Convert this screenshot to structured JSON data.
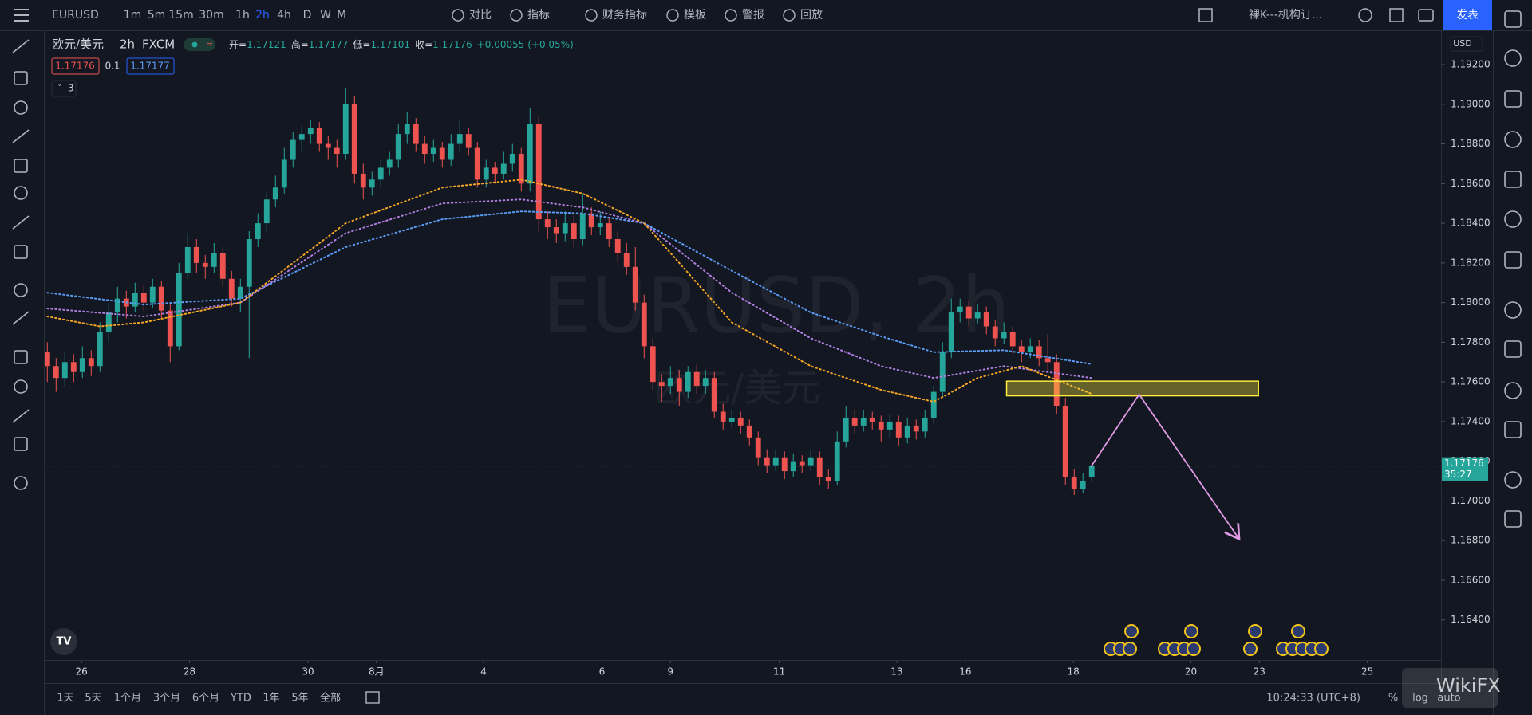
{
  "ui": {
    "symbol": "EURUSD",
    "intervals": [
      "1m",
      "5m",
      "15m",
      "30m",
      "1h",
      "2h",
      "4h",
      "D",
      "W",
      "M"
    ],
    "active_interval_index": 5,
    "tools": [
      "对比",
      "指标",
      "财务指标",
      "模板",
      "警报",
      "回放"
    ],
    "layout_name": "裸K---机构订...",
    "publish": "发表",
    "currency": "USD",
    "ranges": [
      "1天",
      "5天",
      "1个月",
      "3个月",
      "6个月",
      "YTD",
      "1年",
      "5年",
      "全部"
    ],
    "clock": "10:24:33 (UTC+8)",
    "scale_options": [
      "%",
      "log",
      "auto"
    ],
    "indicator_count": 3,
    "brand": "WikiFX"
  },
  "chart_data": {
    "type": "candlestick",
    "title": "欧元/美元",
    "interval": "2h",
    "source": "FXCM",
    "watermark": "EURUSD, 2h",
    "legend": [
      {
        "label": "开=",
        "value": 1.17121
      },
      {
        "label": "高=",
        "value": 1.17177
      },
      {
        "label": "低=",
        "value": 1.17101
      },
      {
        "label": "收=",
        "value": 1.17176
      }
    ],
    "change": "+0.00055 (+0.05%)",
    "bid": 1.17176,
    "spread": 0.1,
    "ask": 1.17177,
    "last_price": 1.17176,
    "countdown": "35:27",
    "up_color": "#26a69a",
    "down_color": "#ef5350",
    "ylim": [
      1.16198,
      1.19373
    ],
    "yticks": [
      {
        "value": 1.164,
        "label": "1.16400"
      },
      {
        "value": 1.166,
        "label": "1.16600"
      },
      {
        "value": 1.168,
        "label": "1.16800"
      },
      {
        "value": 1.17,
        "label": "1.17000"
      },
      {
        "value": 1.172,
        "label": "1.17200"
      },
      {
        "value": 1.174,
        "label": "1.17400"
      },
      {
        "value": 1.176,
        "label": "1.17600"
      },
      {
        "value": 1.178,
        "label": "1.17800"
      },
      {
        "value": 1.18,
        "label": "1.18000"
      },
      {
        "value": 1.182,
        "label": "1.18200"
      },
      {
        "value": 1.184,
        "label": "1.18400"
      },
      {
        "value": 1.186,
        "label": "1.18600"
      },
      {
        "value": 1.188,
        "label": "1.18800"
      },
      {
        "value": 1.19,
        "label": "1.19000"
      },
      {
        "value": 1.192,
        "label": "1.19200"
      }
    ],
    "xlim": [
      -0.3,
      158.8
    ],
    "xticks": [
      {
        "value": 3.9,
        "label": "26"
      },
      {
        "value": 16.2,
        "label": "28"
      },
      {
        "value": 29.7,
        "label": "30"
      },
      {
        "value": 37.5,
        "label": "8月"
      },
      {
        "value": 49.7,
        "label": "4"
      },
      {
        "value": 63.2,
        "label": "6"
      },
      {
        "value": 71,
        "label": "9"
      },
      {
        "value": 83.4,
        "label": "11"
      },
      {
        "value": 96.8,
        "label": "13"
      },
      {
        "value": 104.6,
        "label": "16"
      },
      {
        "value": 116.9,
        "label": "18"
      },
      {
        "value": 130.3,
        "label": "20"
      },
      {
        "value": 138.1,
        "label": "23"
      },
      {
        "value": 150.4,
        "label": "25"
      }
    ],
    "candles": [
      [
        1.1775,
        1.178,
        1.176,
        1.1768
      ],
      [
        1.1768,
        1.1772,
        1.1755,
        1.1762
      ],
      [
        1.1762,
        1.1775,
        1.1758,
        1.177
      ],
      [
        1.177,
        1.1774,
        1.176,
        1.1765
      ],
      [
        1.1765,
        1.1778,
        1.1762,
        1.1772
      ],
      [
        1.1772,
        1.1776,
        1.1763,
        1.1768
      ],
      [
        1.1768,
        1.179,
        1.1765,
        1.1785
      ],
      [
        1.1785,
        1.18,
        1.178,
        1.1795
      ],
      [
        1.1795,
        1.1808,
        1.179,
        1.1802
      ],
      [
        1.1802,
        1.1806,
        1.1792,
        1.1798
      ],
      [
        1.1798,
        1.181,
        1.1795,
        1.1805
      ],
      [
        1.1805,
        1.1809,
        1.1796,
        1.18
      ],
      [
        1.18,
        1.1812,
        1.1797,
        1.1808
      ],
      [
        1.1808,
        1.1811,
        1.1792,
        1.1796
      ],
      [
        1.1796,
        1.1799,
        1.177,
        1.1778
      ],
      [
        1.1778,
        1.182,
        1.1776,
        1.1815
      ],
      [
        1.1815,
        1.1835,
        1.1812,
        1.1828
      ],
      [
        1.1828,
        1.1832,
        1.1815,
        1.182
      ],
      [
        1.182,
        1.1824,
        1.1812,
        1.1818
      ],
      [
        1.1818,
        1.183,
        1.1815,
        1.1825
      ],
      [
        1.1825,
        1.1828,
        1.1808,
        1.1812
      ],
      [
        1.1812,
        1.1816,
        1.1798,
        1.1802
      ],
      [
        1.1802,
        1.1812,
        1.1795,
        1.1808
      ],
      [
        1.1808,
        1.1836,
        1.1772,
        1.1832
      ],
      [
        1.1832,
        1.1845,
        1.1828,
        1.184
      ],
      [
        1.184,
        1.1856,
        1.1836,
        1.1852
      ],
      [
        1.1852,
        1.1864,
        1.1848,
        1.1858
      ],
      [
        1.1858,
        1.1878,
        1.1855,
        1.1872
      ],
      [
        1.1872,
        1.1886,
        1.1868,
        1.1882
      ],
      [
        1.1882,
        1.1889,
        1.1876,
        1.1885
      ],
      [
        1.1885,
        1.1892,
        1.188,
        1.1888
      ],
      [
        1.1888,
        1.1891,
        1.1876,
        1.188
      ],
      [
        1.188,
        1.1884,
        1.1872,
        1.1878
      ],
      [
        1.1878,
        1.1882,
        1.1868,
        1.1875
      ],
      [
        1.1875,
        1.1908,
        1.1872,
        1.19
      ],
      [
        1.19,
        1.1904,
        1.186,
        1.1865
      ],
      [
        1.1865,
        1.187,
        1.1852,
        1.1858
      ],
      [
        1.1858,
        1.1866,
        1.1854,
        1.1862
      ],
      [
        1.1862,
        1.1872,
        1.1858,
        1.1868
      ],
      [
        1.1868,
        1.1876,
        1.1864,
        1.1872
      ],
      [
        1.1872,
        1.189,
        1.1868,
        1.1885
      ],
      [
        1.1885,
        1.1896,
        1.188,
        1.189
      ],
      [
        1.189,
        1.1893,
        1.1876,
        1.188
      ],
      [
        1.188,
        1.1884,
        1.187,
        1.1875
      ],
      [
        1.1875,
        1.1882,
        1.1871,
        1.1878
      ],
      [
        1.1878,
        1.1881,
        1.1868,
        1.1872
      ],
      [
        1.1872,
        1.1885,
        1.1869,
        1.188
      ],
      [
        1.188,
        1.1892,
        1.1876,
        1.1885
      ],
      [
        1.1885,
        1.1888,
        1.1874,
        1.1878
      ],
      [
        1.1878,
        1.1881,
        1.1858,
        1.1862
      ],
      [
        1.1862,
        1.1872,
        1.1858,
        1.1868
      ],
      [
        1.1868,
        1.1871,
        1.186,
        1.1865
      ],
      [
        1.1865,
        1.1876,
        1.1862,
        1.187
      ],
      [
        1.187,
        1.188,
        1.1866,
        1.1875
      ],
      [
        1.1875,
        1.1878,
        1.1856,
        1.186
      ],
      [
        1.186,
        1.1898,
        1.1856,
        1.189
      ],
      [
        1.189,
        1.1894,
        1.1836,
        1.1842
      ],
      [
        1.1842,
        1.1846,
        1.1832,
        1.1838
      ],
      [
        1.1838,
        1.1842,
        1.183,
        1.1835
      ],
      [
        1.1835,
        1.1846,
        1.1831,
        1.184
      ],
      [
        1.184,
        1.1844,
        1.1828,
        1.1832
      ],
      [
        1.1832,
        1.1855,
        1.1829,
        1.1845
      ],
      [
        1.1845,
        1.1848,
        1.1834,
        1.1838
      ],
      [
        1.1838,
        1.1846,
        1.1834,
        1.184
      ],
      [
        1.184,
        1.1843,
        1.1828,
        1.1832
      ],
      [
        1.1832,
        1.1836,
        1.182,
        1.1825
      ],
      [
        1.1825,
        1.183,
        1.1814,
        1.1818
      ],
      [
        1.1818,
        1.1828,
        1.1796,
        1.18
      ],
      [
        1.18,
        1.1804,
        1.1772,
        1.1778
      ],
      [
        1.1778,
        1.1782,
        1.1756,
        1.176
      ],
      [
        1.176,
        1.1764,
        1.175,
        1.1758
      ],
      [
        1.1758,
        1.1768,
        1.1754,
        1.1762
      ],
      [
        1.1762,
        1.1766,
        1.1748,
        1.1755
      ],
      [
        1.1755,
        1.1768,
        1.1752,
        1.1765
      ],
      [
        1.1765,
        1.1769,
        1.1754,
        1.1758
      ],
      [
        1.1758,
        1.1766,
        1.1754,
        1.1762
      ],
      [
        1.1762,
        1.1765,
        1.1742,
        1.1745
      ],
      [
        1.1745,
        1.1749,
        1.1736,
        1.174
      ],
      [
        1.174,
        1.1746,
        1.1737,
        1.1742
      ],
      [
        1.1742,
        1.1745,
        1.1734,
        1.1738
      ],
      [
        1.1738,
        1.1741,
        1.1728,
        1.1732
      ],
      [
        1.1732,
        1.1735,
        1.1718,
        1.1722
      ],
      [
        1.1722,
        1.1726,
        1.1714,
        1.1718
      ],
      [
        1.1718,
        1.1726,
        1.1715,
        1.1722
      ],
      [
        1.1722,
        1.1725,
        1.1711,
        1.1715
      ],
      [
        1.1715,
        1.1724,
        1.1712,
        1.172
      ],
      [
        1.172,
        1.1723,
        1.1714,
        1.1718
      ],
      [
        1.1718,
        1.1726,
        1.1715,
        1.1722
      ],
      [
        1.1722,
        1.1725,
        1.1708,
        1.1712
      ],
      [
        1.1712,
        1.1716,
        1.1706,
        1.171
      ],
      [
        1.171,
        1.1735,
        1.1708,
        1.173
      ],
      [
        1.173,
        1.1748,
        1.1727,
        1.1742
      ],
      [
        1.1742,
        1.1746,
        1.1734,
        1.1738
      ],
      [
        1.1738,
        1.1746,
        1.1735,
        1.1742
      ],
      [
        1.1742,
        1.1745,
        1.1736,
        1.174
      ],
      [
        1.174,
        1.1743,
        1.173,
        1.1736
      ],
      [
        1.1736,
        1.1744,
        1.1732,
        1.174
      ],
      [
        1.174,
        1.1743,
        1.1728,
        1.1732
      ],
      [
        1.1732,
        1.1742,
        1.1729,
        1.1738
      ],
      [
        1.1738,
        1.1741,
        1.1731,
        1.1735
      ],
      [
        1.1735,
        1.1746,
        1.1732,
        1.1742
      ],
      [
        1.1742,
        1.1758,
        1.1739,
        1.1755
      ],
      [
        1.1755,
        1.178,
        1.1752,
        1.1775
      ],
      [
        1.1775,
        1.1802,
        1.1772,
        1.1795
      ],
      [
        1.1795,
        1.1802,
        1.179,
        1.1798
      ],
      [
        1.1798,
        1.1801,
        1.1788,
        1.1792
      ],
      [
        1.1792,
        1.1799,
        1.1789,
        1.1795
      ],
      [
        1.1795,
        1.1798,
        1.1784,
        1.1788
      ],
      [
        1.1788,
        1.1791,
        1.1778,
        1.1782
      ],
      [
        1.1782,
        1.179,
        1.1779,
        1.1785
      ],
      [
        1.1785,
        1.1788,
        1.1774,
        1.1778
      ],
      [
        1.1778,
        1.1781,
        1.177,
        1.1775
      ],
      [
        1.1775,
        1.1782,
        1.1772,
        1.1778
      ],
      [
        1.1778,
        1.1781,
        1.1768,
        1.1772
      ],
      [
        1.1772,
        1.1784,
        1.1766,
        1.177
      ],
      [
        1.177,
        1.1774,
        1.1744,
        1.1748
      ],
      [
        1.1748,
        1.1752,
        1.1708,
        1.1712
      ],
      [
        1.1712,
        1.1716,
        1.1703,
        1.1706
      ],
      [
        1.1706,
        1.1714,
        1.1704,
        1.171
      ],
      [
        1.17121,
        1.17177,
        1.17101,
        1.17176
      ]
    ],
    "moving_averages": [
      {
        "color": "#5b9cf6",
        "x": [
          0,
          11,
          22,
          34,
          45,
          54,
          61,
          68,
          78,
          87,
          95,
          101,
          109,
          119
        ],
        "values": [
          1.1805,
          1.1799,
          1.1802,
          1.1828,
          1.1842,
          1.1846,
          1.1845,
          1.184,
          1.1816,
          1.1795,
          1.1783,
          1.1775,
          1.1776,
          1.1769
        ]
      },
      {
        "color": "#b07fe0",
        "x": [
          0,
          11,
          22,
          34,
          45,
          54,
          61,
          68,
          78,
          87,
          95,
          101,
          109,
          119
        ],
        "values": [
          1.1797,
          1.1793,
          1.18,
          1.1835,
          1.185,
          1.1852,
          1.1848,
          1.184,
          1.1805,
          1.1782,
          1.1768,
          1.1762,
          1.1768,
          1.1762
        ]
      },
      {
        "color": "#f5a623",
        "x": [
          0,
          6,
          11,
          22,
          34,
          45,
          54,
          61,
          68,
          72,
          78,
          87,
          95,
          101,
          106,
          111,
          119
        ],
        "values": [
          1.1793,
          1.1788,
          1.179,
          1.18,
          1.184,
          1.1858,
          1.1862,
          1.1855,
          1.184,
          1.182,
          1.179,
          1.1768,
          1.1756,
          1.175,
          1.1762,
          1.1768,
          1.1754
        ]
      }
    ],
    "zone": {
      "x": [
        109.3,
        138
      ],
      "y": [
        1.1753,
        1.17604
      ],
      "color": "#ffeb3b"
    },
    "projection": {
      "x": [
        118.9,
        124.4,
        135.8
      ],
      "values": [
        1.17172,
        1.17537,
        1.16808
      ],
      "color": "#e19be6"
    }
  }
}
